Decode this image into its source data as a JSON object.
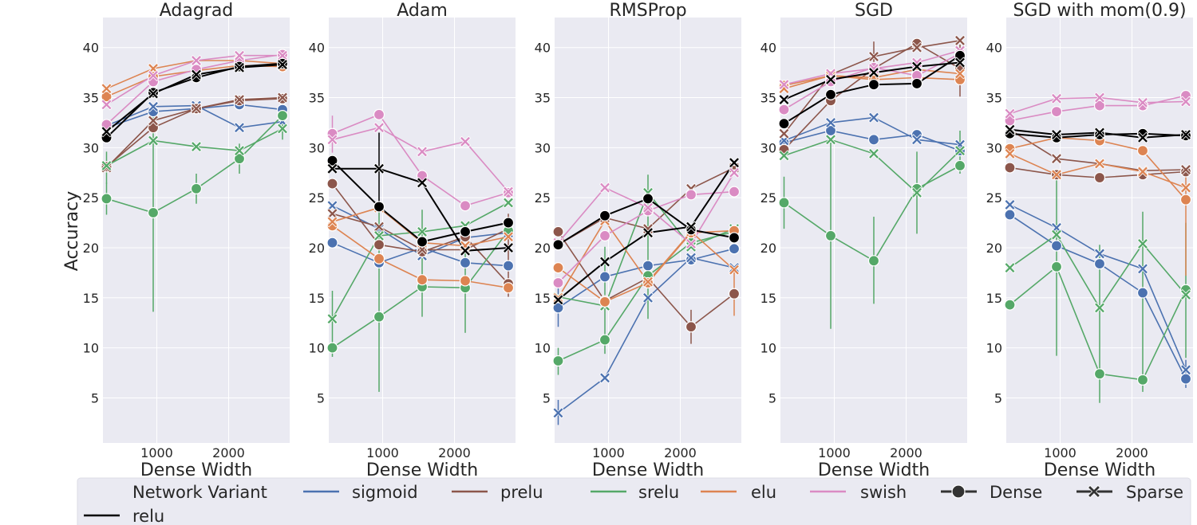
{
  "chart_data": {
    "type": "line",
    "ylabel": "Accuracy",
    "xlabel": "Dense Width",
    "xlim": [
      250,
      2850
    ],
    "ylim": [
      0.5,
      43
    ],
    "xticks": [
      1000,
      2000
    ],
    "yticks": [
      5,
      10,
      15,
      20,
      25,
      30,
      35,
      40
    ],
    "x": [
      300,
      950,
      1550,
      2150,
      2750
    ],
    "grid": true,
    "legend": {
      "placement": "bottom",
      "title": "Network Variant",
      "entries": [
        {
          "label": "sigmoid",
          "kind": "line",
          "color": "#4c72b0"
        },
        {
          "label": "prelu",
          "kind": "line",
          "color": "#8c564b"
        },
        {
          "label": "srelu",
          "kind": "line",
          "color": "#55a868"
        },
        {
          "label": "elu",
          "kind": "line",
          "color": "#dd8452"
        },
        {
          "label": "swish",
          "kind": "line",
          "color": "#da8bc3"
        },
        {
          "label": "Dense",
          "kind": "marker-circle",
          "color": "#333333"
        },
        {
          "label": "Sparse",
          "kind": "marker-x",
          "color": "#333333"
        },
        {
          "label": "relu",
          "kind": "line",
          "color": "#000000"
        }
      ]
    },
    "activations": [
      {
        "name": "sigmoid",
        "color": "#4c72b0"
      },
      {
        "name": "prelu",
        "color": "#8c564b"
      },
      {
        "name": "srelu",
        "color": "#55a868"
      },
      {
        "name": "elu",
        "color": "#dd8452"
      },
      {
        "name": "swish",
        "color": "#da8bc3"
      },
      {
        "name": "relu",
        "color": "#000000"
      }
    ],
    "panels": [
      {
        "title": "Adagrad",
        "series": {
          "sigmoid": {
            "dense": [
              32.0,
              33.6,
              33.9,
              34.3,
              33.8
            ],
            "sparse": [
              32.2,
              34.1,
              34.2,
              32.0,
              32.6
            ]
          },
          "prelu": {
            "dense": [
              28.1,
              32.0,
              33.9,
              34.7,
              34.9
            ],
            "sparse": [
              28.0,
              32.7,
              33.9,
              34.8,
              35.0
            ]
          },
          "srelu": {
            "dense": [
              24.9,
              23.5,
              25.9,
              28.9,
              33.2
            ],
            "sparse": [
              28.2,
              30.7,
              30.1,
              29.7,
              31.9
            ]
          },
          "elu": {
            "dense": [
              35.1,
              37.1,
              37.7,
              38.2,
              38.1
            ],
            "sparse": [
              35.9,
              37.9,
              38.7,
              38.7,
              38.4
            ]
          },
          "swish": {
            "dense": [
              32.3,
              36.6,
              37.8,
              38.7,
              39.3
            ],
            "sparse": [
              34.3,
              37.2,
              38.7,
              39.2,
              39.2
            ]
          },
          "relu": {
            "dense": [
              31.0,
              35.5,
              37.0,
              38.1,
              38.4
            ],
            "sparse": [
              31.6,
              35.4,
              37.3,
              38.0,
              38.3
            ]
          }
        },
        "errorbars": [
          {
            "x": 950,
            "low": 13.6,
            "high": 33.4,
            "series": "srelu dense"
          },
          {
            "x": 300,
            "low": 23.3,
            "high": 26.5,
            "series": "srelu dense"
          },
          {
            "x": 1550,
            "low": 24.4,
            "high": 27.4,
            "series": "srelu dense"
          },
          {
            "x": 2150,
            "low": 27.4,
            "high": 30.4,
            "series": "srelu dense"
          },
          {
            "x": 2750,
            "low": 30.8,
            "high": 33.0,
            "series": "srelu sparse"
          },
          {
            "x": 300,
            "low": 26.4,
            "high": 29.6,
            "series": "srelu sparse"
          }
        ]
      },
      {
        "title": "Adam",
        "series": {
          "sigmoid": {
            "dense": [
              20.5,
              18.5,
              20.0,
              18.5,
              18.2
            ],
            "sparse": [
              24.2,
              21.9,
              19.2,
              21.0,
              21.5
            ]
          },
          "prelu": {
            "dense": [
              26.4,
              20.3,
              19.6,
              21.1,
              16.4
            ],
            "sparse": [
              23.4,
              22.1,
              19.8,
              19.8,
              21.9
            ]
          },
          "srelu": {
            "dense": [
              10.0,
              13.1,
              16.1,
              16.0,
              21.7
            ],
            "sparse": [
              12.9,
              21.2,
              21.6,
              22.2,
              24.5
            ]
          },
          "elu": {
            "dense": [
              22.2,
              18.9,
              16.8,
              16.7,
              16.0
            ],
            "sparse": [
              22.6,
              24.0,
              20.5,
              20.2,
              21.1
            ]
          },
          "swish": {
            "dense": [
              31.4,
              33.3,
              27.2,
              24.2,
              25.5
            ],
            "sparse": [
              30.8,
              32.0,
              29.6,
              30.6,
              25.6
            ]
          },
          "relu": {
            "dense": [
              28.7,
              24.1,
              20.6,
              21.6,
              22.5
            ],
            "sparse": [
              27.9,
              27.9,
              26.5,
              19.7,
              20.0
            ]
          }
        },
        "errorbars": [
          {
            "x": 950,
            "low": 5.6,
            "high": 24.2,
            "series": "srelu dense"
          },
          {
            "x": 300,
            "low": 9.1,
            "high": 15.7,
            "series": "srelu dense"
          },
          {
            "x": 2150,
            "low": 11.5,
            "high": 20.1,
            "series": "srelu dense"
          },
          {
            "x": 1550,
            "low": 13.1,
            "high": 23.8,
            "series": "srelu sparse"
          },
          {
            "x": 950,
            "low": 24.0,
            "high": 31.5,
            "series": "relu sparse"
          },
          {
            "x": 300,
            "low": 29.5,
            "high": 33.2,
            "series": "swish dense"
          },
          {
            "x": 2750,
            "low": 15.1,
            "high": 23.4,
            "series": "prelu dense"
          }
        ]
      },
      {
        "title": "RMSProp",
        "series": {
          "sigmoid": {
            "dense": [
              14.0,
              17.1,
              18.2,
              18.8,
              19.9
            ],
            "sparse": [
              3.5,
              7.0,
              15.0,
              19.0,
              18.0
            ]
          },
          "prelu": {
            "dense": [
              21.6,
              14.7,
              17.0,
              12.1,
              15.4
            ],
            "sparse": [
              20.3,
              23.0,
              21.9,
              25.9,
              28.0
            ]
          },
          "srelu": {
            "dense": [
              8.7,
              10.8,
              17.2,
              20.5,
              21.6
            ],
            "sparse": [
              15.1,
              14.2,
              25.5,
              20.1,
              21.9
            ]
          },
          "elu": {
            "dense": [
              18.0,
              14.6,
              16.5,
              21.5,
              21.7
            ],
            "sparse": [
              15.0,
              22.7,
              16.6,
              21.6,
              17.8
            ]
          },
          "swish": {
            "dense": [
              16.5,
              21.2,
              23.7,
              25.3,
              25.6
            ],
            "sparse": [
              20.5,
              26.0,
              24.0,
              20.4,
              27.5
            ]
          },
          "relu": {
            "dense": [
              20.3,
              23.2,
              24.9,
              21.8,
              21.0
            ],
            "sparse": [
              14.8,
              18.6,
              21.5,
              22.1,
              28.5
            ]
          }
        },
        "errorbars": [
          {
            "x": 300,
            "low": 2.3,
            "high": 4.8,
            "series": "sigmoid sparse"
          },
          {
            "x": 300,
            "low": 7.3,
            "high": 10.0,
            "series": "srelu dense"
          },
          {
            "x": 950,
            "low": 9.4,
            "high": 20.1,
            "series": "srelu dense"
          },
          {
            "x": 1550,
            "low": 12.9,
            "high": 27.3,
            "series": "srelu sparse"
          },
          {
            "x": 2150,
            "low": 10.4,
            "high": 13.8,
            "series": "prelu dense"
          },
          {
            "x": 300,
            "low": 12.1,
            "high": 16.0,
            "series": "sigmoid dense"
          },
          {
            "x": 2750,
            "low": 13.2,
            "high": 17.8,
            "series": "elu sparse"
          }
        ]
      },
      {
        "title": "SGD",
        "series": {
          "sigmoid": {
            "dense": [
              30.5,
              31.7,
              30.8,
              31.3,
              29.7
            ],
            "sparse": [
              30.7,
              32.5,
              33.0,
              30.8,
              30.3
            ]
          },
          "prelu": {
            "dense": [
              29.8,
              34.7,
              37.9,
              40.4,
              37.9
            ],
            "sparse": [
              31.4,
              37.3,
              39.1,
              40.0,
              40.7
            ]
          },
          "srelu": {
            "dense": [
              24.5,
              21.2,
              18.7,
              25.9,
              28.2
            ],
            "sparse": [
              29.2,
              30.8,
              29.4,
              25.5,
              29.7
            ]
          },
          "elu": {
            "dense": [
              36.2,
              37.2,
              36.8,
              37.0,
              36.8
            ],
            "sparse": [
              35.9,
              37.2,
              37.0,
              37.8,
              37.4
            ]
          },
          "swish": {
            "dense": [
              33.8,
              36.6,
              38.0,
              37.2,
              39.4
            ],
            "sparse": [
              36.3,
              37.4,
              37.9,
              38.5,
              39.7
            ]
          },
          "relu": {
            "dense": [
              32.4,
              35.3,
              36.3,
              36.4,
              39.2
            ],
            "sparse": [
              34.8,
              36.8,
              37.5,
              38.1,
              38.5
            ]
          }
        },
        "errorbars": [
          {
            "x": 950,
            "low": 11.9,
            "high": 30.5,
            "series": "srelu dense"
          },
          {
            "x": 1550,
            "low": 14.4,
            "high": 23.1,
            "series": "srelu dense"
          },
          {
            "x": 2150,
            "low": 21.4,
            "high": 29.6,
            "series": "srelu sparse"
          },
          {
            "x": 300,
            "low": 21.9,
            "high": 27.1,
            "series": "srelu dense"
          },
          {
            "x": 2750,
            "low": 27.4,
            "high": 31.7,
            "series": "srelu sparse"
          },
          {
            "x": 1550,
            "low": 37.8,
            "high": 40.6,
            "series": "prelu sparse"
          },
          {
            "x": 2750,
            "low": 35.1,
            "high": 40.3,
            "series": "prelu dense"
          }
        ]
      },
      {
        "title": "SGD with mom(0.9)",
        "series": {
          "sigmoid": {
            "dense": [
              23.3,
              20.2,
              18.4,
              15.5,
              6.9
            ],
            "sparse": [
              24.3,
              22.0,
              19.4,
              17.9,
              7.8
            ]
          },
          "prelu": {
            "dense": [
              28.0,
              27.3,
              27.0,
              27.3,
              27.6
            ],
            "sparse": [
              31.8,
              28.9,
              28.4,
              27.7,
              27.8
            ]
          },
          "srelu": {
            "dense": [
              14.3,
              18.1,
              7.4,
              6.8,
              15.8
            ],
            "sparse": [
              18.0,
              21.3,
              14.0,
              20.4,
              15.3
            ]
          },
          "elu": {
            "dense": [
              29.9,
              31.0,
              30.7,
              29.7,
              24.8
            ],
            "sparse": [
              29.4,
              27.3,
              28.4,
              27.6,
              26.0
            ]
          },
          "swish": {
            "dense": [
              32.7,
              33.6,
              34.2,
              34.2,
              35.2
            ],
            "sparse": [
              33.4,
              34.9,
              35.0,
              34.5,
              34.6
            ]
          },
          "relu": {
            "dense": [
              31.4,
              31.0,
              31.3,
              31.4,
              31.2
            ],
            "sparse": [
              31.8,
              31.3,
              31.5,
              31.0,
              31.3
            ]
          }
        },
        "errorbars": [
          {
            "x": 950,
            "low": 9.2,
            "high": 27.4,
            "series": "srelu dense"
          },
          {
            "x": 1550,
            "low": 4.5,
            "high": 20.3,
            "series": "srelu dense"
          },
          {
            "x": 2150,
            "low": 5.6,
            "high": 23.6,
            "series": "srelu sparse"
          },
          {
            "x": 2750,
            "low": 9.0,
            "high": 22.5,
            "series": "srelu sparse"
          },
          {
            "x": 2750,
            "low": 17.2,
            "high": 27.9,
            "series": "elu dense"
          },
          {
            "x": 2750,
            "low": 6.0,
            "high": 8.8,
            "series": "sigmoid dense"
          }
        ]
      }
    ]
  }
}
